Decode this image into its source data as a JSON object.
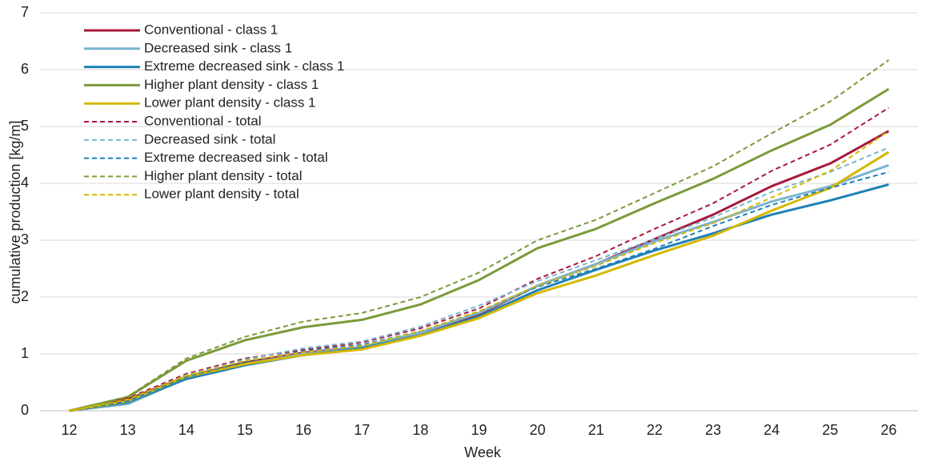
{
  "chart_data": {
    "type": "line",
    "xlabel": "Week",
    "ylabel": "cumulative production [kg/m]",
    "categories": [
      "12",
      "13",
      "14",
      "15",
      "16",
      "17",
      "18",
      "19",
      "20",
      "21",
      "22",
      "23",
      "24",
      "25",
      "26"
    ],
    "ylim": [
      0,
      7
    ],
    "yticks": [
      0,
      1,
      2,
      3,
      4,
      5,
      6,
      7
    ],
    "grid": true,
    "legend": "upper left",
    "series": [
      {
        "name": "Conventional - class 1",
        "color": "#a6193c",
        "dashed": false,
        "values": [
          0,
          0.2,
          0.6,
          0.85,
          1.02,
          1.12,
          1.38,
          1.7,
          2.2,
          2.58,
          3.02,
          3.45,
          3.95,
          4.35,
          4.92
        ]
      },
      {
        "name": "Decreased sink - class 1",
        "color": "#7ab4d0",
        "dashed": false,
        "values": [
          0,
          0.12,
          0.57,
          0.82,
          1.0,
          1.12,
          1.38,
          1.72,
          2.2,
          2.58,
          2.98,
          3.32,
          3.68,
          3.95,
          4.32
        ]
      },
      {
        "name": "Extreme decreased sink - class 1",
        "color": "#1f80b8",
        "dashed": false,
        "values": [
          0,
          0.15,
          0.56,
          0.8,
          0.98,
          1.1,
          1.33,
          1.66,
          2.12,
          2.48,
          2.82,
          3.12,
          3.45,
          3.7,
          3.98
        ]
      },
      {
        "name": "Higher plant density - class 1",
        "color": "#7a9a3a",
        "dashed": false,
        "values": [
          0,
          0.24,
          0.88,
          1.24,
          1.47,
          1.6,
          1.87,
          2.3,
          2.86,
          3.2,
          3.65,
          4.08,
          4.58,
          5.03,
          5.66
        ]
      },
      {
        "name": "Lower plant density - class 1",
        "color": "#d4b800",
        "dashed": false,
        "values": [
          0,
          0.17,
          0.6,
          0.82,
          0.98,
          1.08,
          1.32,
          1.63,
          2.07,
          2.38,
          2.74,
          3.08,
          3.52,
          3.92,
          4.55
        ]
      },
      {
        "name": "Conventional - total",
        "color": "#a6193c",
        "dashed": true,
        "values": [
          0,
          0.22,
          0.65,
          0.92,
          1.07,
          1.2,
          1.45,
          1.8,
          2.32,
          2.72,
          3.2,
          3.65,
          4.22,
          4.68,
          5.33
        ]
      },
      {
        "name": "Decreased sink - total",
        "color": "#7ab4d0",
        "dashed": true,
        "values": [
          0,
          0.18,
          0.63,
          0.9,
          1.1,
          1.22,
          1.48,
          1.85,
          2.28,
          2.65,
          3.02,
          3.4,
          3.85,
          4.2,
          4.63
        ]
      },
      {
        "name": "Extreme decreased sink - total",
        "color": "#1f80b8",
        "dashed": true,
        "values": [
          0,
          0.17,
          0.6,
          0.86,
          1.05,
          1.16,
          1.4,
          1.75,
          2.18,
          2.5,
          2.85,
          3.25,
          3.62,
          3.92,
          4.2
        ]
      },
      {
        "name": "Higher plant density - total",
        "color": "#7a9a3a",
        "dashed": true,
        "values": [
          0,
          0.25,
          0.92,
          1.3,
          1.57,
          1.72,
          2.0,
          2.43,
          3.0,
          3.36,
          3.83,
          4.3,
          4.88,
          5.44,
          6.17
        ]
      },
      {
        "name": "Lower plant density - total",
        "color": "#d4b800",
        "dashed": true,
        "values": [
          0,
          0.2,
          0.62,
          0.88,
          1.03,
          1.14,
          1.4,
          1.75,
          2.2,
          2.55,
          2.95,
          3.3,
          3.75,
          4.22,
          4.92
        ]
      }
    ]
  }
}
